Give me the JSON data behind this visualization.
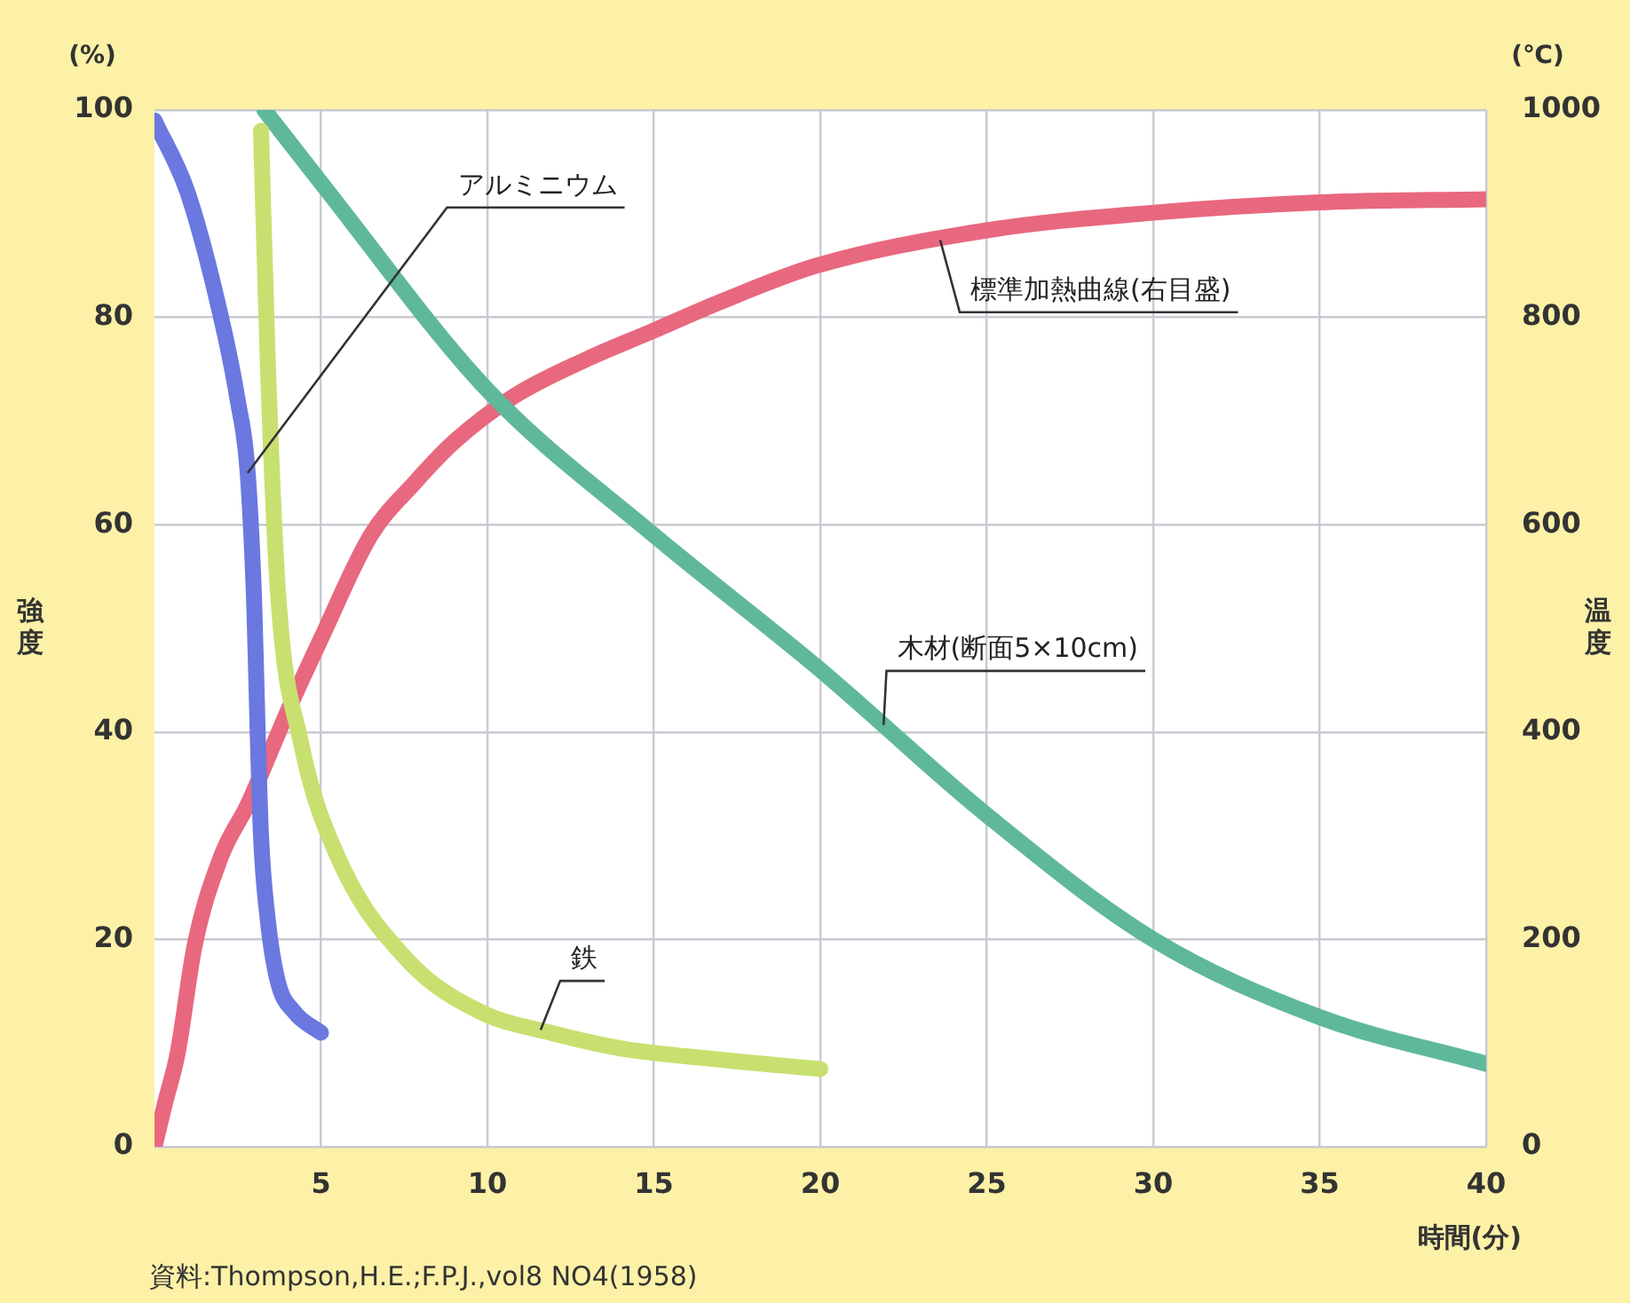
{
  "chart_data": {
    "type": "line",
    "xlabel": "時間(分)",
    "ylabel": "強度",
    "y2label": "温度",
    "annotations": [
      "(%)",
      "(℃)",
      "資料:Thompson,H.E.;F.P.J.,vol8 NO4(1958)"
    ],
    "xlim": [
      0,
      40
    ],
    "xticks": [
      5,
      10,
      15,
      20,
      25,
      30,
      35,
      40
    ],
    "ylim": [
      0,
      100
    ],
    "yticks": [
      0,
      20,
      40,
      60,
      80,
      100
    ],
    "y2lim": [
      0,
      1000
    ],
    "y2ticks": [
      0,
      200,
      400,
      600,
      800,
      1000
    ],
    "grid": true,
    "marker": "none",
    "line_style": "solid",
    "series": [
      {
        "name": "アルミニウム",
        "color": "#6a78e0",
        "x": [
          0,
          1,
          2,
          2.5,
          2.8,
          3,
          3.1,
          3.2,
          3.4,
          3.7,
          4.2,
          5
        ],
        "values": [
          99,
          92,
          80,
          72,
          65,
          52,
          40,
          30,
          22,
          16,
          13,
          11
        ]
      },
      {
        "name": "鉄",
        "color": "#c8e070",
        "x": [
          3.2,
          3.4,
          3.7,
          4.4,
          5.5,
          7.6,
          9.8,
          11.9,
          14,
          16.7,
          20
        ],
        "values": [
          98,
          76,
          54,
          39,
          28,
          18,
          13,
          11,
          9.5,
          8.5,
          7.5
        ]
      },
      {
        "name": "木材(断面5×10cm)",
        "color": "#5fb89a",
        "x": [
          3.3,
          5,
          10,
          15,
          20,
          25,
          30,
          35,
          40
        ],
        "values": [
          100,
          93,
          73,
          59,
          46,
          32,
          20,
          12.5,
          8
        ]
      },
      {
        "name": "標準加熱曲線(右目盛)",
        "color": "#e8687f",
        "axis": "y2",
        "x": [
          0,
          0.3,
          0.7,
          1.2,
          2,
          2.8,
          4,
          5,
          6.5,
          7.8,
          9,
          10.8,
          13,
          14.9,
          17,
          19.9,
          25,
          30,
          35,
          40
        ],
        "values": [
          0,
          40,
          91,
          193,
          280,
          330,
          420,
          490,
          590,
          640,
          680,
          724,
          760,
          786,
          815,
          850,
          884,
          901,
          911,
          914
        ]
      }
    ]
  }
}
